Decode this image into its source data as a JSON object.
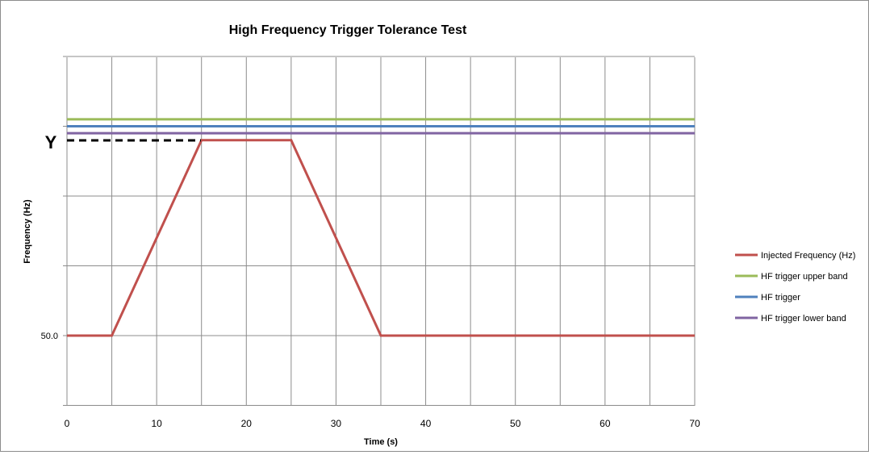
{
  "chart_data": {
    "type": "line",
    "title": "High Frequency Trigger Tolerance Test",
    "xlabel": "Time (s)",
    "ylabel": "Frequency (Hz)",
    "xlim": [
      0,
      70
    ],
    "xticks": [
      "0",
      "10",
      "20",
      "30",
      "40",
      "50",
      "60",
      "70"
    ],
    "y_tick_label": "50.0",
    "y_marker_label": "Y",
    "grid": true,
    "legend_position": "right",
    "series": [
      {
        "name": "Injected Frequency (Hz)",
        "color": "#c0504d",
        "x": [
          0,
          5,
          15,
          25,
          35,
          70
        ],
        "y": [
          0,
          0,
          2.8,
          2.8,
          0,
          0
        ]
      },
      {
        "name": "HF trigger upper band",
        "color": "#9bbb59",
        "x": [
          0,
          70
        ],
        "y": [
          3.1,
          3.1
        ]
      },
      {
        "name": "HF trigger",
        "color": "#4f81bd",
        "x": [
          0,
          70
        ],
        "y": [
          3.0,
          3.0
        ]
      },
      {
        "name": "HF trigger lower band",
        "color": "#8064a2",
        "x": [
          0,
          70
        ],
        "y": [
          2.9,
          2.9
        ]
      }
    ]
  }
}
